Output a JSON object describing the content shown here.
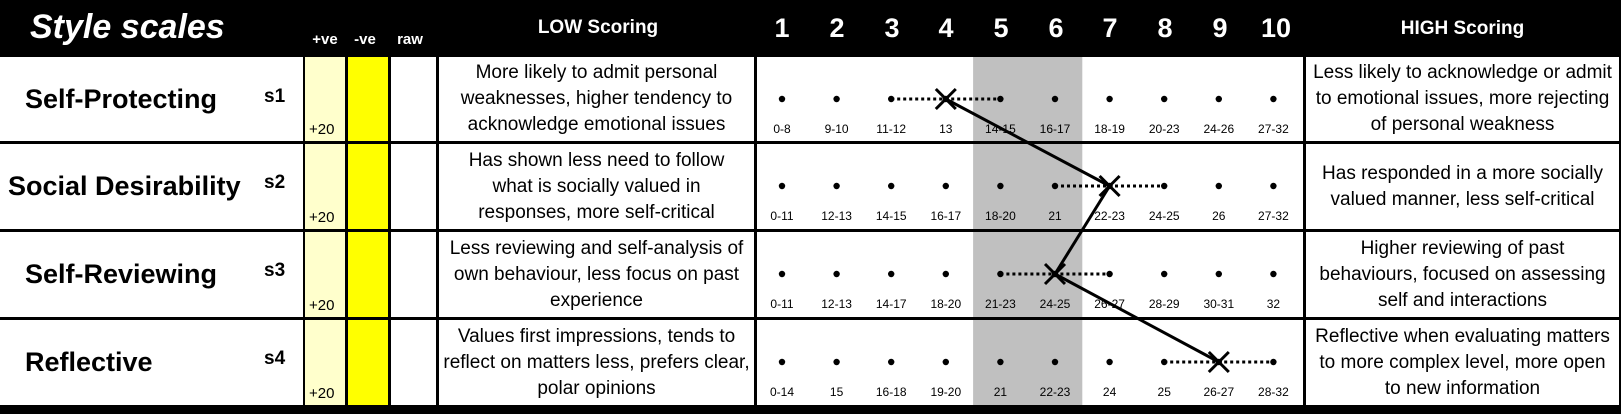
{
  "header": {
    "title": "Style scales",
    "col_pos": "+ve",
    "col_neg": "-ve",
    "col_raw": "raw",
    "low_heading": "LOW Scoring",
    "high_heading": "HIGH Scoring",
    "columns": [
      "1",
      "2",
      "3",
      "4",
      "5",
      "6",
      "7",
      "8",
      "9",
      "10"
    ]
  },
  "rows": [
    {
      "name": "Self-Protecting",
      "code": "s1",
      "pos": "+20",
      "neg": "",
      "raw": "",
      "low": "More likely to admit personal weaknesses, higher tendency to acknowledge emotional issues",
      "high": "Less likely to acknowledge or admit to emotional issues, more rejecting of personal weakness",
      "ranges": [
        "0-8",
        "9-10",
        "11-12",
        "13",
        "14-15",
        "16-17",
        "18-19",
        "20-23",
        "24-26",
        "27-32"
      ]
    },
    {
      "name": "Social Desirability",
      "code": "s2",
      "pos": "+20",
      "neg": "",
      "raw": "",
      "low": "Has shown less need to follow what is socially valued in responses, more self-critical",
      "high": "Has responded in a more socially valued manner, less self-critical",
      "ranges": [
        "0-11",
        "12-13",
        "14-15",
        "16-17",
        "18-20",
        "21",
        "22-23",
        "24-25",
        "26",
        "27-32"
      ]
    },
    {
      "name": "Self-Reviewing",
      "code": "s3",
      "pos": "+20",
      "neg": "",
      "raw": "",
      "low": "Less reviewing and self-analysis of own behaviour, less focus on past experience",
      "high": "Higher reviewing of past behaviours, focused on assessing self and interactions",
      "ranges": [
        "0-11",
        "12-13",
        "14-17",
        "18-20",
        "21-23",
        "24-25",
        "26-27",
        "28-29",
        "30-31",
        "32"
      ]
    },
    {
      "name": "Reflective",
      "code": "s4",
      "pos": "+20",
      "neg": "",
      "raw": "",
      "low": "Values first impressions, tends to reflect on matters less, prefers clear, polar opinions",
      "high": "Reflective when evaluating matters to more complex level, more open to new information",
      "ranges": [
        "0-14",
        "15",
        "16-18",
        "19-20",
        "21",
        "22-23",
        "24",
        "25",
        "26-27",
        "28-32"
      ]
    }
  ],
  "chart_data": {
    "type": "line",
    "title": "Style scales",
    "x_scale": [
      1,
      2,
      3,
      4,
      5,
      6,
      7,
      8,
      9,
      10
    ],
    "shaded_band": [
      5,
      6
    ],
    "series": [
      {
        "points": [
          {
            "scale": "s1",
            "score": 4,
            "band": [
              3,
              5
            ]
          },
          {
            "scale": "s2",
            "score": 7,
            "band": [
              6,
              8
            ]
          },
          {
            "scale": "s3",
            "score": 6,
            "band": [
              5,
              7
            ]
          },
          {
            "scale": "s4",
            "score": 9,
            "band": [
              8,
              10
            ]
          }
        ]
      }
    ],
    "colors": {
      "pos_column": "#ffffcc",
      "neg_column": "#ffff00",
      "shade": "#c0c0c0",
      "marks": "#000000"
    }
  }
}
